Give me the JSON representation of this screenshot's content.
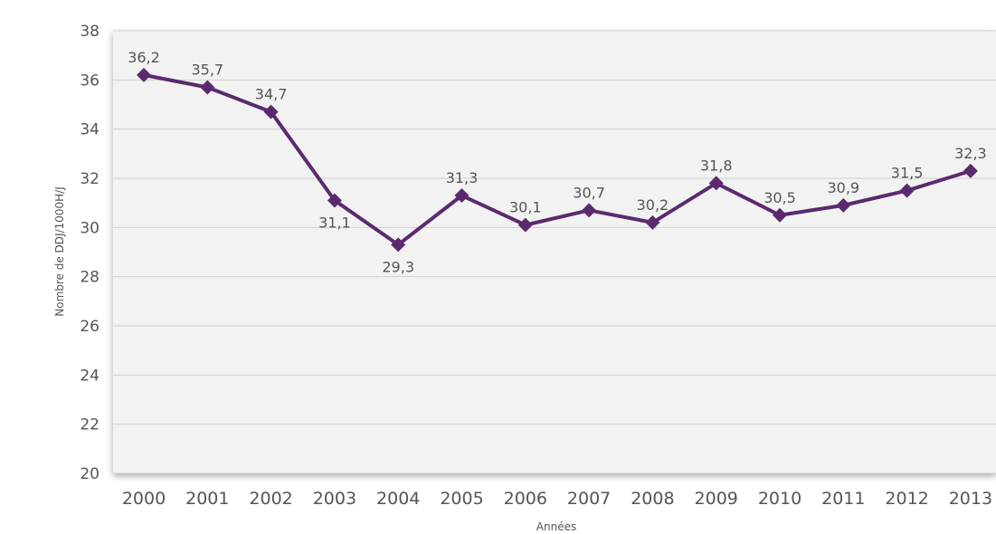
{
  "chart_data": {
    "type": "line",
    "xlabel": "Années",
    "ylabel": "Nombre de DDJ/1000H/J",
    "ylim": [
      20,
      38
    ],
    "yticks": [
      "20",
      "22",
      "24",
      "26",
      "28",
      "30",
      "32",
      "34",
      "36",
      "38"
    ],
    "categories": [
      "2000",
      "2001",
      "2002",
      "2003",
      "2004",
      "2005",
      "2006",
      "2007",
      "2008",
      "2009",
      "2010",
      "2011",
      "2012",
      "2013"
    ],
    "series": [
      {
        "values": [
          36.2,
          35.7,
          34.7,
          31.1,
          29.3,
          31.3,
          30.1,
          30.7,
          30.2,
          31.8,
          30.5,
          30.9,
          31.5,
          32.3
        ],
        "labels": [
          "36,2",
          "35,7",
          "34,7",
          "31,1",
          "29,3",
          "31,3",
          "30,1",
          "30,7",
          "30,2",
          "31,8",
          "30,5",
          "30,9",
          "31,5",
          "32,3"
        ],
        "label_position": [
          "above",
          "above",
          "above",
          "below",
          "below",
          "above",
          "above",
          "above",
          "above",
          "above",
          "above",
          "above",
          "above",
          "above"
        ],
        "color": "#5b2a6e"
      }
    ],
    "grid": true,
    "colors": {
      "plot_background": "#f2f2f2",
      "gridline": "#cfcfcf",
      "line": "#5b2a6e",
      "text": "#555555"
    }
  }
}
